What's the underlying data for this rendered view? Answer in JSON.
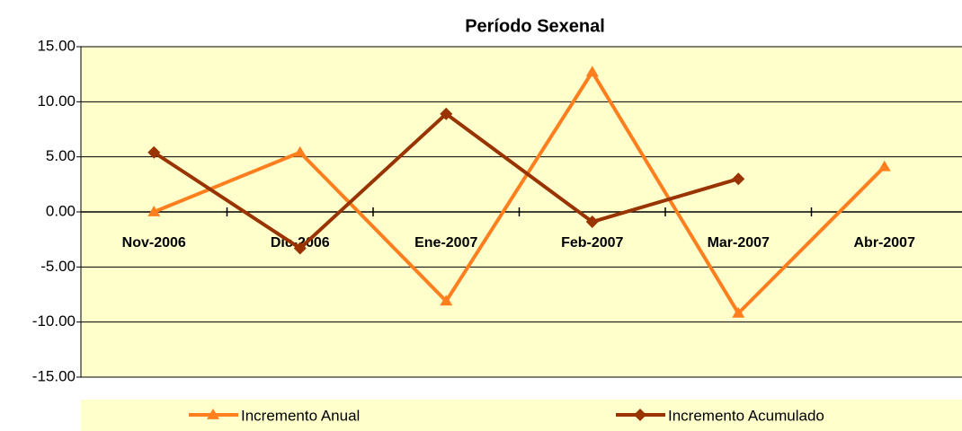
{
  "chart_data": {
    "type": "line",
    "title": "Período Sexenal",
    "categories": [
      "Nov-2006",
      "Dic-2006",
      "Ene-2007",
      "Feb-2007",
      "Mar-2007",
      "Abr-2007"
    ],
    "series": [
      {
        "name": "Incremento Anual",
        "color": "#ff7f1e",
        "marker": "triangle",
        "values": [
          0,
          5.4,
          -8.1,
          12.7,
          -9.2,
          4.1
        ]
      },
      {
        "name": "Incremento Acumulado",
        "color": "#993300",
        "marker": "diamond",
        "values": [
          5.4,
          -3.3,
          8.9,
          -0.9,
          3.0,
          null
        ]
      }
    ],
    "ylim": [
      -15,
      15
    ],
    "yticks": [
      {
        "value": -15,
        "label": "-15.00"
      },
      {
        "value": -10,
        "label": "-10.00"
      },
      {
        "value": -5,
        "label": "-5.00"
      },
      {
        "value": 0,
        "label": "0.00"
      },
      {
        "value": 5,
        "label": "5.00"
      },
      {
        "value": 10,
        "label": "10.00"
      },
      {
        "value": 15,
        "label": "15.00"
      }
    ],
    "grid": true,
    "legend": "bottom"
  }
}
